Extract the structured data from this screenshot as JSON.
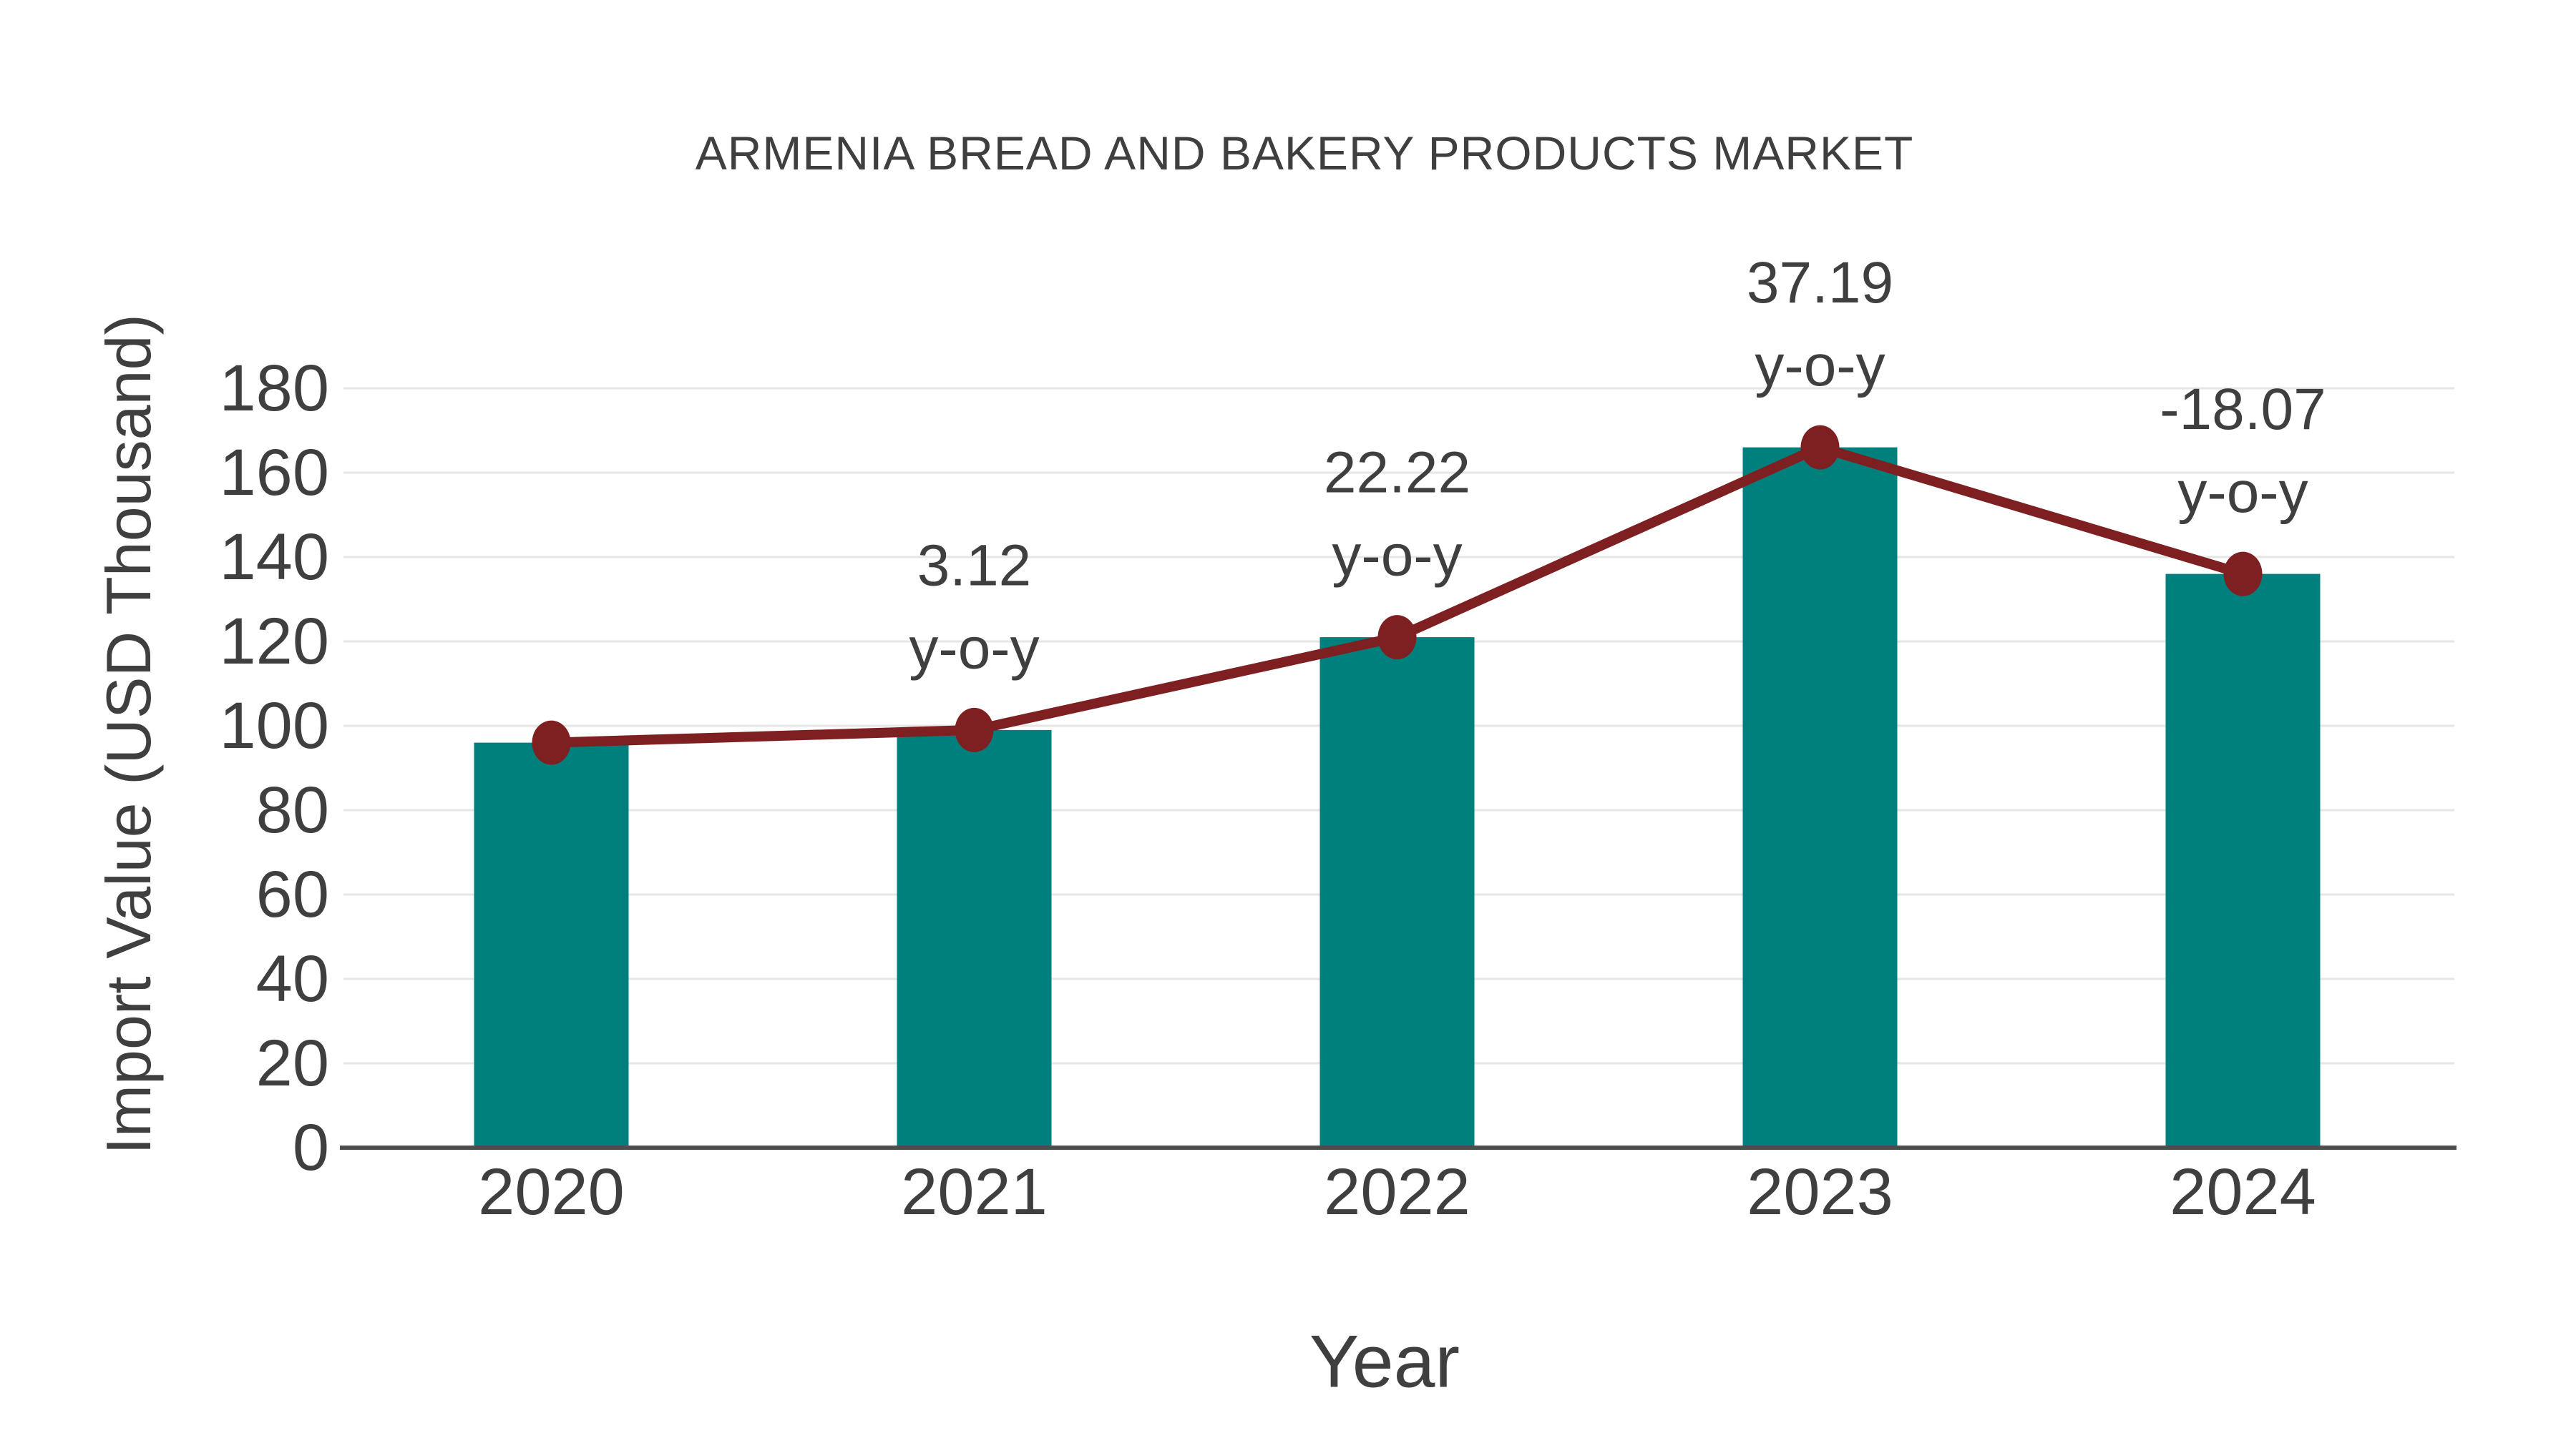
{
  "page": {
    "background": "#ffffff"
  },
  "style": {
    "text_color": "#3f3f3f",
    "grid_color": "#e6e6e6",
    "axis_color": "#4d4d4d",
    "bar_color": "#00807d",
    "line_color": "#7e2022"
  },
  "chart_data": {
    "type": "bar",
    "title": "ARMENIA BREAD AND BAKERY PRODUCTS MARKET",
    "xlabel": "Year",
    "ylabel": "Import Value (USD Thousand)",
    "categories": [
      "2020",
      "2021",
      "2022",
      "2023",
      "2024"
    ],
    "series": [
      {
        "name": "Import Value",
        "type": "bar",
        "color": "#00807d",
        "values": [
          96,
          99,
          121,
          166,
          136
        ]
      },
      {
        "name": "Import Value trend line",
        "type": "line",
        "color": "#7e2022",
        "values": [
          96,
          99,
          121,
          166,
          136
        ]
      }
    ],
    "annotations": [
      {
        "category": "2021",
        "line1": "3.12",
        "line2": "y-o-y"
      },
      {
        "category": "2022",
        "line1": "22.22",
        "line2": "y-o-y"
      },
      {
        "category": "2023",
        "line1": "37.19",
        "line2": "y-o-y"
      },
      {
        "category": "2024",
        "line1": "-18.07",
        "line2": "y-o-y"
      }
    ],
    "ylim": [
      0,
      180
    ],
    "ytick_step": 20,
    "yticks": [
      0,
      20,
      40,
      60,
      80,
      100,
      120,
      140,
      160,
      180
    ],
    "grid": true,
    "legend_position": "none"
  }
}
